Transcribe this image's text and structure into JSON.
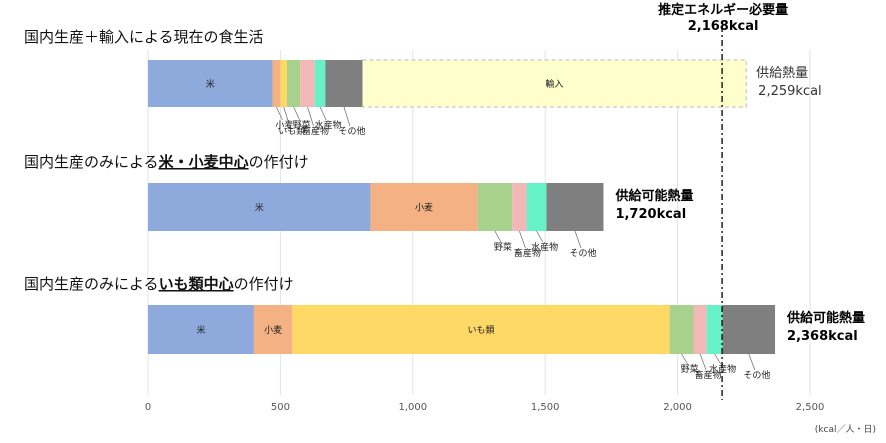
{
  "chart_data": {
    "type": "bar",
    "orientation": "horizontal",
    "stacked": true,
    "xlim": [
      0,
      2500
    ],
    "x_ticks": [
      "0",
      "500",
      "1,000",
      "1,500",
      "2,000",
      "2,500"
    ],
    "x_unit": "(kcal／人・日)",
    "grid": "vertical",
    "reference_line": {
      "value": 2168,
      "label_line1": "推定エネルギー必要量",
      "label_line2": "2,168kcal"
    },
    "colors": {
      "rice": "#8ea9db",
      "wheat": "#f4b183",
      "potato": "#ffd966",
      "veg": "#a9d18e",
      "livestock": "#f2b8b8",
      "fish": "#66f2c6",
      "other": "#7f7f7f",
      "import": "#ffffcc"
    },
    "scenarios": [
      {
        "title_parts": [
          {
            "text": "国内生産＋輸入による現在の食生活",
            "bold": false
          }
        ],
        "segments": [
          {
            "key": "rice",
            "name": "米",
            "value": 470,
            "inner_label": "米"
          },
          {
            "key": "wheat",
            "name": "小麦",
            "value": 30
          },
          {
            "key": "potato",
            "name": "いも類",
            "value": 25
          },
          {
            "key": "veg",
            "name": "野菜",
            "value": 50
          },
          {
            "key": "livestock",
            "name": "畜産物",
            "value": 55
          },
          {
            "key": "fish",
            "name": "水産物",
            "value": 40
          },
          {
            "key": "other",
            "name": "その他",
            "value": 140
          },
          {
            "key": "import",
            "name": "輸入",
            "value": 1449,
            "inner_label": "輸入",
            "dashed": true
          }
        ],
        "callouts": [
          "小麦",
          "いも類",
          "野菜",
          "畜産物",
          "水産物",
          "その他"
        ],
        "total_line1": "供給熱量",
        "total_line2": "2,259kcal",
        "total_bold": false
      },
      {
        "title_parts": [
          {
            "text": "国内生産のみによる",
            "bold": false
          },
          {
            "text": "米・小麦中心",
            "bold": true
          },
          {
            "text": "の作付け",
            "bold": false
          }
        ],
        "segments": [
          {
            "key": "rice",
            "name": "米",
            "value": 840,
            "inner_label": "米"
          },
          {
            "key": "wheat",
            "name": "小麦",
            "value": 405,
            "inner_label": "小麦"
          },
          {
            "key": "veg",
            "name": "野菜",
            "value": 130
          },
          {
            "key": "livestock",
            "name": "畜産物",
            "value": 55
          },
          {
            "key": "fish",
            "name": "水産物",
            "value": 75
          },
          {
            "key": "other",
            "name": "その他",
            "value": 215
          }
        ],
        "callouts": [
          "野菜",
          "畜産物",
          "水産物",
          "その他"
        ],
        "total_line1": "供給可能熱量",
        "total_line2": "1,720kcal",
        "total_bold": true
      },
      {
        "title_parts": [
          {
            "text": "国内生産のみによる",
            "bold": false
          },
          {
            "text": "いも類中心",
            "bold": true
          },
          {
            "text": "の作付け",
            "bold": false
          }
        ],
        "segments": [
          {
            "key": "rice",
            "name": "米",
            "value": 400,
            "inner_label": "米"
          },
          {
            "key": "wheat",
            "name": "小麦",
            "value": 145,
            "inner_label": "小麦"
          },
          {
            "key": "potato",
            "name": "いも類",
            "value": 1425,
            "inner_label": "いも類"
          },
          {
            "key": "veg",
            "name": "野菜",
            "value": 90
          },
          {
            "key": "livestock",
            "name": "畜産物",
            "value": 50
          },
          {
            "key": "fish",
            "name": "水産物",
            "value": 60
          },
          {
            "key": "other",
            "name": "その他",
            "value": 198
          }
        ],
        "callouts": [
          "野菜",
          "畜産物",
          "水産物",
          "その他"
        ],
        "total_line1": "供給可能熱量",
        "total_line2": "2,368kcal",
        "total_bold": true
      }
    ]
  }
}
